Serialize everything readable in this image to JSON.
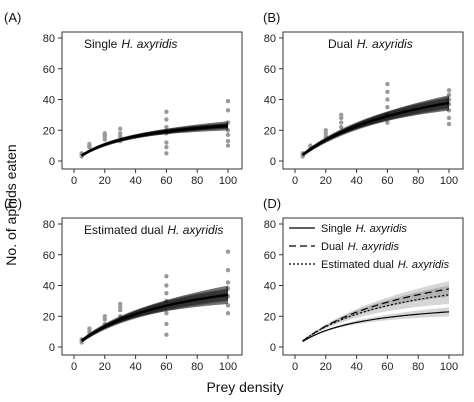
{
  "figure": {
    "xlabel": "Prey density",
    "ylabel": "No. of aphids eaten"
  },
  "chart_data": [
    {
      "type": "scatter",
      "panel": "(A)",
      "title": "Single",
      "title_italic": "H. axyridis",
      "x_ticks": [
        0,
        20,
        40,
        60,
        80,
        100
      ],
      "y_ticks": [
        0,
        20,
        40,
        60,
        80
      ],
      "xlim": [
        0,
        105
      ],
      "ylim": [
        0,
        80
      ],
      "points": {
        "x": [
          5,
          5,
          5,
          10,
          10,
          10,
          20,
          20,
          20,
          20,
          30,
          30,
          30,
          30,
          60,
          60,
          60,
          60,
          60,
          60,
          60,
          100,
          100,
          100,
          100,
          100,
          100,
          100
        ],
        "y": [
          3,
          4,
          5,
          9,
          10,
          11,
          14,
          16,
          17,
          18,
          13,
          16,
          18,
          21,
          5,
          9,
          12,
          18,
          22,
          27,
          32,
          10,
          13,
          17,
          20,
          25,
          33,
          39
        ]
      },
      "curve": {
        "Imax": 32,
        "half_saturation": 40
      },
      "band_width": 3
    },
    {
      "type": "scatter",
      "panel": "(B)",
      "title": "Dual",
      "title_italic": "H. axyridis",
      "x_ticks": [
        0,
        20,
        40,
        60,
        80,
        100
      ],
      "y_ticks": [
        0,
        20,
        40,
        60,
        80
      ],
      "xlim": [
        0,
        105
      ],
      "ylim": [
        0,
        80
      ],
      "points": {
        "x": [
          5,
          5,
          5,
          10,
          10,
          10,
          20,
          20,
          20,
          30,
          30,
          30,
          30,
          60,
          60,
          60,
          60,
          60,
          60,
          100,
          100,
          100,
          100,
          100,
          100,
          100
        ],
        "y": [
          3,
          4,
          5,
          8,
          9,
          10,
          16,
          18,
          20,
          22,
          25,
          28,
          30,
          25,
          30,
          35,
          40,
          45,
          50,
          24,
          28,
          33,
          37,
          40,
          43,
          46
        ]
      },
      "curve": {
        "Imax": 68,
        "half_saturation": 80
      },
      "band_width": 5
    },
    {
      "type": "scatter",
      "panel": "(C)",
      "title": "Estimated dual",
      "title_italic": "H. axyridis",
      "x_ticks": [
        0,
        20,
        40,
        60,
        80,
        100
      ],
      "y_ticks": [
        0,
        20,
        40,
        60,
        80
      ],
      "xlim": [
        0,
        105
      ],
      "ylim": [
        0,
        80
      ],
      "points": {
        "x": [
          5,
          5,
          5,
          10,
          10,
          10,
          20,
          20,
          20,
          30,
          30,
          30,
          30,
          60,
          60,
          60,
          60,
          60,
          60,
          60,
          100,
          100,
          100,
          100,
          100,
          100,
          100
        ],
        "y": [
          3,
          4,
          5,
          8,
          10,
          12,
          15,
          18,
          20,
          20,
          24,
          26,
          28,
          8,
          15,
          22,
          30,
          35,
          40,
          46,
          22,
          27,
          33,
          38,
          42,
          50,
          62
        ]
      },
      "curve": {
        "Imax": 56,
        "half_saturation": 65
      },
      "band_width": 6
    },
    {
      "type": "line",
      "panel": "(D)",
      "x_ticks": [
        0,
        20,
        40,
        60,
        80,
        100
      ],
      "y_ticks": [
        0,
        20,
        40,
        60,
        80
      ],
      "xlim": [
        0,
        105
      ],
      "ylim": [
        0,
        80
      ],
      "series": [
        {
          "name": "Single",
          "name_italic": "H. axyridis",
          "dash": "solid",
          "Imax": 32,
          "half_saturation": 40,
          "band_width": 3
        },
        {
          "name": "Dual",
          "name_italic": "H. axyridis",
          "dash": "dashed",
          "Imax": 68,
          "half_saturation": 80,
          "band_width": 5
        },
        {
          "name": "Estimated dual",
          "name_italic": "H. axyridis",
          "dash": "dotted",
          "Imax": 56,
          "half_saturation": 65,
          "band_width": 6
        }
      ]
    }
  ]
}
